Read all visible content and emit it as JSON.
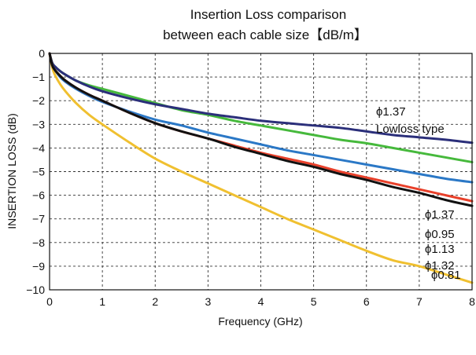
{
  "chart_data": {
    "type": "line",
    "title": [
      "Insertion Loss comparison",
      "between each cable size【dB/m】"
    ],
    "xlabel": "Frequency (GHz)",
    "ylabel": "INSERTION LOSS (dB)",
    "xlim": [
      0,
      8
    ],
    "ylim": [
      -10,
      0
    ],
    "xticks": [
      "0",
      "1",
      "2",
      "3",
      "4",
      "5",
      "6",
      "7",
      "8"
    ],
    "yticks": [
      "0",
      "−1",
      "−2",
      "−3",
      "−4",
      "−5",
      "−6",
      "−7",
      "−8",
      "−9",
      "−10"
    ],
    "grid": true,
    "series": [
      {
        "name": "ϕ1.37 Lowloss type",
        "label_lines": [
          "ϕ1.37",
          "Lowloss type"
        ],
        "color": "#2b2f7a",
        "x": [
          0,
          0.05,
          0.1,
          0.2,
          0.3,
          0.5,
          0.75,
          1,
          1.5,
          2,
          2.5,
          3,
          3.5,
          4,
          4.5,
          5,
          5.5,
          6,
          6.5,
          7,
          7.5,
          8
        ],
        "y": [
          0,
          -0.4,
          -0.55,
          -0.75,
          -0.9,
          -1.15,
          -1.4,
          -1.6,
          -1.9,
          -2.15,
          -2.35,
          -2.55,
          -2.7,
          -2.85,
          -2.95,
          -3.05,
          -3.15,
          -3.3,
          -3.45,
          -3.55,
          -3.65,
          -3.78
        ]
      },
      {
        "name": "ϕ1.37",
        "label_lines": [
          "ϕ1.37"
        ],
        "color": "#46b93c",
        "x": [
          0,
          0.05,
          0.1,
          0.2,
          0.3,
          0.5,
          0.75,
          1,
          1.5,
          2,
          2.5,
          3,
          3.5,
          4,
          4.5,
          5,
          5.5,
          6,
          6.5,
          7,
          7.5,
          8
        ],
        "y": [
          0,
          -0.4,
          -0.55,
          -0.75,
          -0.9,
          -1.15,
          -1.35,
          -1.5,
          -1.8,
          -2.1,
          -2.4,
          -2.6,
          -2.85,
          -3.05,
          -3.25,
          -3.45,
          -3.65,
          -3.8,
          -4.0,
          -4.2,
          -4.4,
          -4.6
        ]
      },
      {
        "name": "ϕ0.95",
        "label_lines": [
          "ϕ0.95"
        ],
        "color": "#2b78c6",
        "x": [
          0,
          0.05,
          0.1,
          0.2,
          0.3,
          0.5,
          0.75,
          1,
          1.5,
          2,
          2.5,
          3,
          3.5,
          4,
          4.5,
          5,
          5.5,
          6,
          6.5,
          7,
          7.5,
          8
        ],
        "y": [
          0,
          -0.5,
          -0.7,
          -1.0,
          -1.2,
          -1.5,
          -1.8,
          -2.05,
          -2.45,
          -2.8,
          -3.05,
          -3.35,
          -3.6,
          -3.85,
          -4.1,
          -4.3,
          -4.5,
          -4.7,
          -4.9,
          -5.1,
          -5.3,
          -5.45
        ]
      },
      {
        "name": "ϕ1.13",
        "label_lines": [
          "ϕ1.13"
        ],
        "color": "#e8402a",
        "x": [
          0,
          0.05,
          0.1,
          0.2,
          0.3,
          0.5,
          0.75,
          1,
          1.5,
          2,
          2.5,
          3,
          3.5,
          4,
          4.5,
          5,
          5.5,
          6,
          6.5,
          7,
          7.5,
          8
        ],
        "y": [
          0,
          -0.5,
          -0.7,
          -0.95,
          -1.15,
          -1.45,
          -1.75,
          -2.0,
          -2.5,
          -2.95,
          -3.3,
          -3.6,
          -3.9,
          -4.2,
          -4.45,
          -4.7,
          -5.0,
          -5.25,
          -5.5,
          -5.75,
          -6.0,
          -6.25
        ]
      },
      {
        "name": "ϕ1.32",
        "label_lines": [
          "ϕ1.32"
        ],
        "color": "#111111",
        "x": [
          0,
          0.05,
          0.1,
          0.2,
          0.3,
          0.5,
          0.75,
          1,
          1.5,
          2,
          2.5,
          3,
          3.5,
          4,
          4.5,
          5,
          5.5,
          6,
          6.5,
          7,
          7.5,
          8
        ],
        "y": [
          0,
          -0.5,
          -0.7,
          -0.95,
          -1.15,
          -1.45,
          -1.75,
          -2.0,
          -2.5,
          -2.95,
          -3.3,
          -3.6,
          -3.95,
          -4.25,
          -4.55,
          -4.8,
          -5.1,
          -5.35,
          -5.65,
          -5.9,
          -6.2,
          -6.45
        ]
      },
      {
        "name": "ϕ0.81",
        "label_lines": [
          "ϕ0.81"
        ],
        "color": "#f0c030",
        "x": [
          0,
          0.05,
          0.1,
          0.2,
          0.3,
          0.5,
          0.75,
          1,
          1.5,
          2,
          2.5,
          3,
          3.5,
          4,
          4.5,
          5,
          5.5,
          6,
          6.5,
          7,
          7.5,
          8
        ],
        "y": [
          0,
          -0.6,
          -0.9,
          -1.3,
          -1.6,
          -2.1,
          -2.6,
          -3.0,
          -3.75,
          -4.45,
          -5.0,
          -5.5,
          -6.0,
          -6.5,
          -7.0,
          -7.45,
          -7.9,
          -8.35,
          -8.75,
          -9.0,
          -9.35,
          -9.7
        ]
      }
    ]
  }
}
